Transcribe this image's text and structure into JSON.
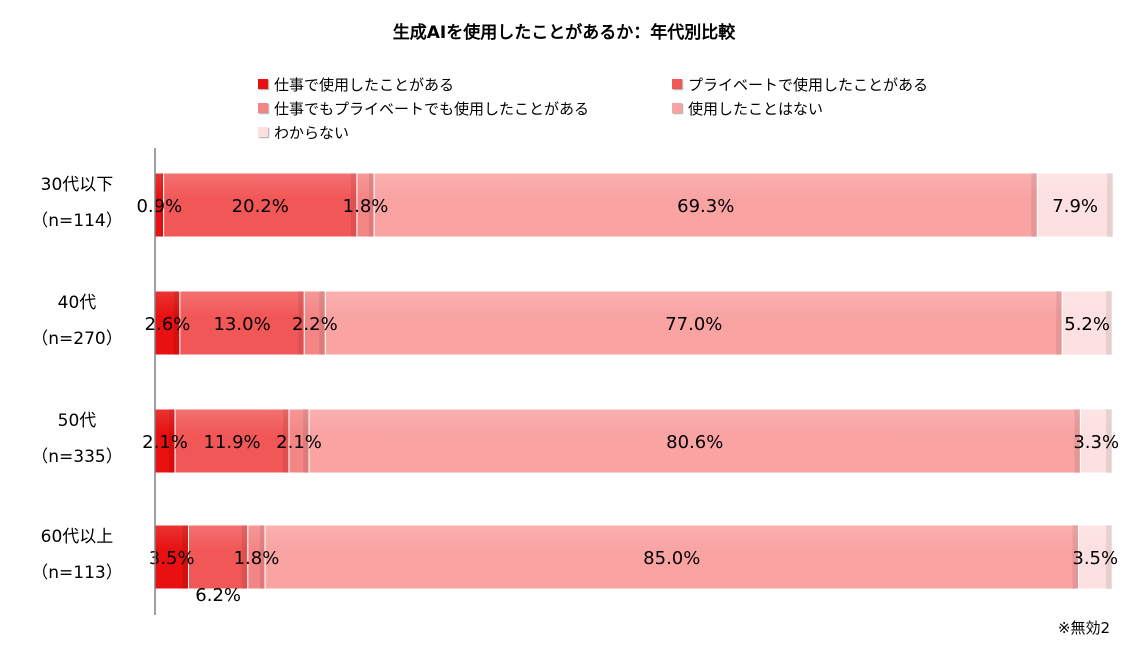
{
  "chart_data": {
    "type": "bar",
    "orientation": "horizontal",
    "stacked": true,
    "percent": true,
    "title": "生成AIを使用したことがあるか：年代別比較",
    "xlim": [
      0,
      100
    ],
    "legend_position": "top",
    "categories": [
      {
        "name": "30代以下",
        "n": "（n=114）"
      },
      {
        "name": "40代",
        "n": "（n=270）"
      },
      {
        "name": "50代",
        "n": "（n=335）"
      },
      {
        "name": "60代以上",
        "n": "（n=113）"
      }
    ],
    "series": [
      {
        "name": "仕事で使用したことがある",
        "color": "#e81010",
        "values": [
          0.9,
          2.6,
          2.1,
          3.5
        ],
        "labels": [
          "0.9%",
          "2.6%",
          "2.1%",
          "3.5%"
        ]
      },
      {
        "name": "プライベートで使用したことがある",
        "color": "#f25757",
        "values": [
          20.2,
          13.0,
          11.9,
          6.2
        ],
        "labels": [
          "20.2%",
          "13.0%",
          "11.9%",
          "6.2%"
        ]
      },
      {
        "name": "仕事でもプライベートでも使用したことがある",
        "color": "#f48585",
        "values": [
          1.8,
          2.2,
          2.1,
          1.8
        ],
        "labels": [
          "1.8%",
          "2.2%",
          "2.1%",
          "1.8%"
        ]
      },
      {
        "name": "使用したことはない",
        "color": "#f9a3a3",
        "values": [
          69.3,
          77.0,
          80.6,
          85.0
        ],
        "labels": [
          "69.3%",
          "77.0%",
          "80.6%",
          "85.0%"
        ]
      },
      {
        "name": "わからない",
        "color": "#fde0e0",
        "values": [
          7.9,
          5.2,
          3.3,
          3.5
        ],
        "labels": [
          "7.9%",
          "5.2%",
          "3.3%",
          "3.5%"
        ]
      }
    ]
  },
  "note": "※無効2"
}
